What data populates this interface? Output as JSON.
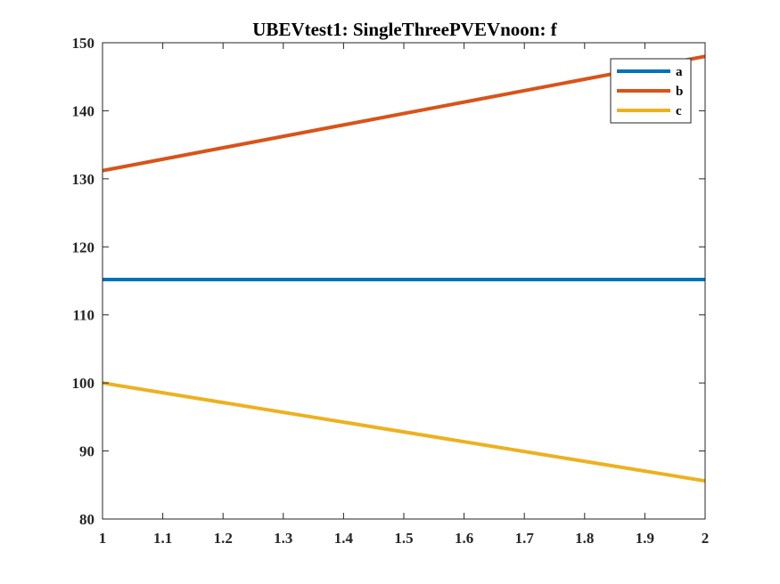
{
  "chart_data": {
    "type": "line",
    "title": "UBEVtest1: SingleThreePVEVnoon: f",
    "xlabel": "",
    "ylabel": "",
    "xlim": [
      1,
      2
    ],
    "ylim": [
      80,
      150
    ],
    "xticks": [
      1,
      1.1,
      1.2,
      1.3,
      1.4,
      1.5,
      1.6,
      1.7,
      1.8,
      1.9,
      2
    ],
    "xtick_labels": [
      "1",
      "1.1",
      "1.2",
      "1.3",
      "1.4",
      "1.5",
      "1.6",
      "1.7",
      "1.8",
      "1.9",
      "2"
    ],
    "yticks": [
      80,
      90,
      100,
      110,
      120,
      130,
      140,
      150
    ],
    "ytick_labels": [
      "80",
      "90",
      "100",
      "110",
      "120",
      "130",
      "140",
      "150"
    ],
    "grid": false,
    "legend_position": "top-right",
    "series": [
      {
        "name": "a",
        "color": "#0072BD",
        "x": [
          1,
          2
        ],
        "y": [
          115.2,
          115.2
        ]
      },
      {
        "name": "b",
        "color": "#D95319",
        "x": [
          1,
          2
        ],
        "y": [
          131.2,
          148.0
        ]
      },
      {
        "name": "c",
        "color": "#EDB120",
        "x": [
          1,
          2
        ],
        "y": [
          100.0,
          85.6
        ]
      }
    ]
  }
}
